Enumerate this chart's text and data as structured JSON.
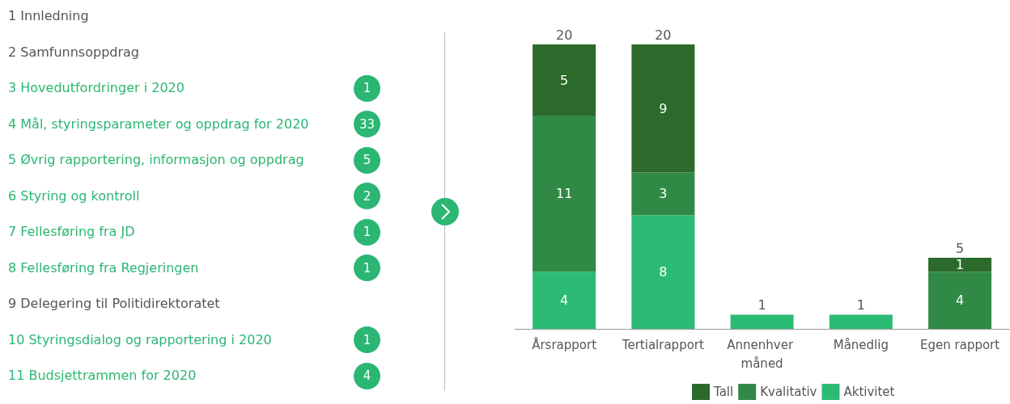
{
  "chart_data": [
    {
      "type": "other",
      "categories": [
        "1 Innledning",
        "2 Samfunnsoppdrag",
        "3 Hovedutfordringer i 2020",
        "4 Mål, styringsparameter og oppdrag for 2020",
        "5 Øvrig rapportering, informasjon og oppdrag",
        "6 Styring og kontroll",
        "7 Fellesføring fra JD",
        "8 Fellesføring fra Regjeringen",
        "9 Delegering til Politidirektoratet",
        "10 Styringsdialog og rapportering i 2020",
        "11 Budsjettrammen for 2020"
      ],
      "values": [
        null,
        null,
        1,
        33,
        5,
        2,
        1,
        1,
        null,
        1,
        4
      ],
      "data_labels": true,
      "color": "#2bb673",
      "colors": [
        "#555555",
        "#555555",
        "#2bb673",
        "#2bb673",
        "#2bb673",
        "#2bb673",
        "#2bb673",
        "#2bb673",
        "#555555",
        "#2bb673",
        "#2bb673"
      ]
    },
    {
      "type": "bar",
      "stacked": true,
      "legend": "bottom",
      "categories": [
        "Årsrapport",
        "Tertialrapport",
        "Annenhver måned",
        "Månedlig",
        "Egen rapport"
      ],
      "series": [
        {
          "name": "Aktivitet",
          "color": "#2bbb74",
          "values": [
            4,
            8,
            1,
            1,
            null
          ],
          "value_labels": [
            "4",
            "8",
            null,
            null,
            null
          ]
        },
        {
          "name": "Kvalitativ",
          "color": "#308a45",
          "values": [
            11,
            3,
            null,
            null,
            4
          ],
          "value_labels": [
            "11",
            "3",
            null,
            null,
            "4"
          ]
        },
        {
          "name": "Tall",
          "color": "#2b6a2a",
          "values": [
            5,
            9,
            null,
            null,
            1
          ],
          "value_labels": [
            "5",
            "9",
            null,
            null,
            "1"
          ]
        }
      ],
      "totals": [
        "20",
        "20",
        "1",
        "1",
        "5"
      ]
    }
  ]
}
